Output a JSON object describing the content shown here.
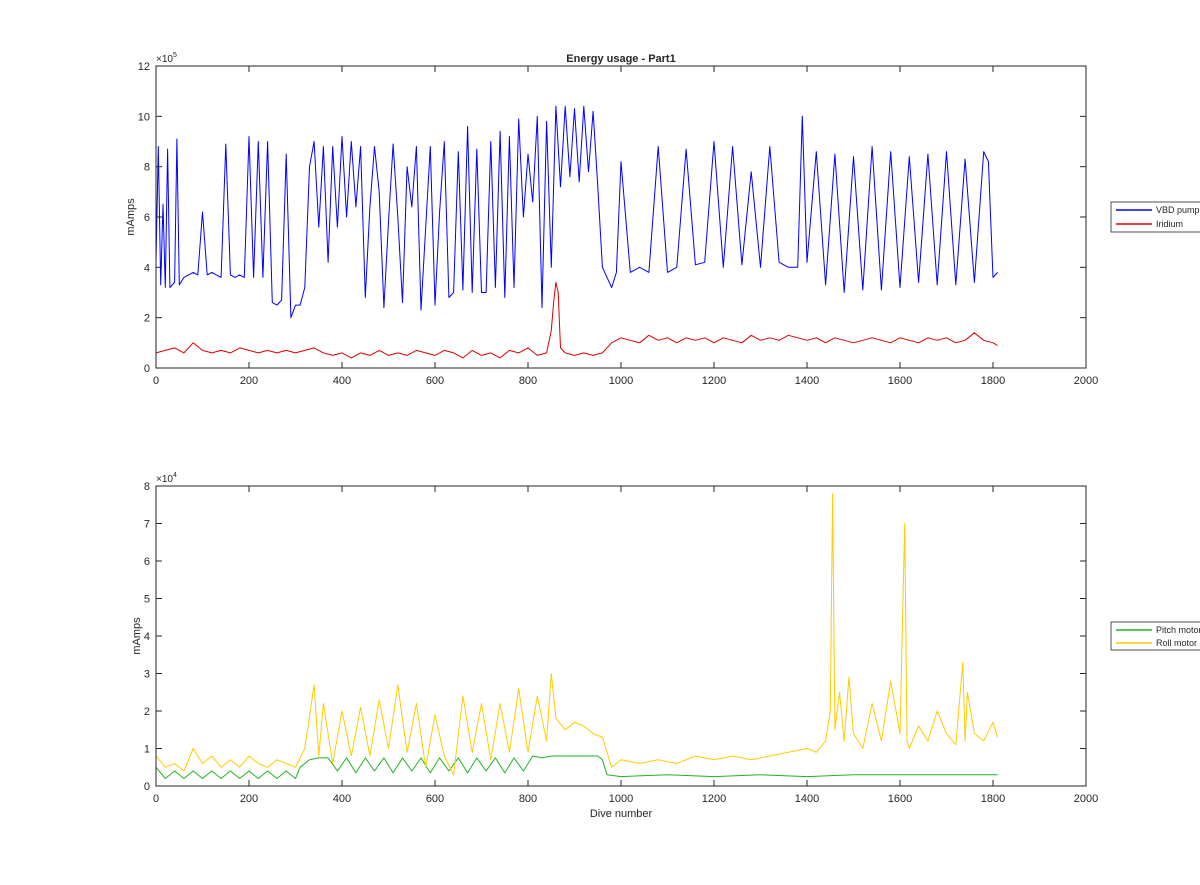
{
  "chart_data": [
    {
      "type": "line",
      "title": "Energy usage - Part1",
      "xlabel": "",
      "ylabel": "mAmps",
      "xlim": [
        0,
        2000
      ],
      "ylim": [
        0,
        1200000
      ],
      "x_ticks": [
        "0",
        "200",
        "400",
        "600",
        "800",
        "1000",
        "1200",
        "1400",
        "1600",
        "1800",
        "2000"
      ],
      "y_ticks": [
        "0",
        "2",
        "4",
        "6",
        "8",
        "10",
        "12"
      ],
      "y_multiplier": {
        "base": "×10",
        "exp": "5"
      },
      "grid": false,
      "legend_position": "outside-right",
      "series": [
        {
          "name": "VBD pump",
          "color": "#0000ff",
          "x": [
            0,
            5,
            10,
            15,
            20,
            25,
            30,
            35,
            40,
            45,
            50,
            60,
            70,
            80,
            90,
            100,
            110,
            120,
            130,
            140,
            150,
            160,
            170,
            180,
            190,
            200,
            210,
            220,
            230,
            240,
            250,
            260,
            270,
            280,
            290,
            300,
            310,
            320,
            330,
            340,
            350,
            360,
            370,
            380,
            390,
            400,
            410,
            420,
            430,
            440,
            450,
            460,
            470,
            480,
            490,
            500,
            510,
            520,
            530,
            540,
            550,
            560,
            570,
            580,
            590,
            600,
            610,
            620,
            630,
            640,
            650,
            660,
            670,
            680,
            690,
            700,
            710,
            720,
            730,
            740,
            750,
            760,
            770,
            780,
            790,
            800,
            810,
            820,
            830,
            840,
            850,
            860,
            870,
            880,
            890,
            900,
            910,
            920,
            930,
            940,
            950,
            960,
            970,
            980,
            990,
            1000,
            1020,
            1040,
            1060,
            1080,
            1100,
            1120,
            1140,
            1160,
            1180,
            1200,
            1220,
            1240,
            1260,
            1280,
            1300,
            1320,
            1340,
            1360,
            1380,
            1390,
            1400,
            1420,
            1440,
            1460,
            1480,
            1500,
            1520,
            1540,
            1560,
            1580,
            1600,
            1620,
            1640,
            1660,
            1680,
            1700,
            1720,
            1740,
            1760,
            1780,
            1790,
            1800,
            1810
          ],
          "y": [
            420000,
            880000,
            330000,
            650000,
            320000,
            870000,
            320000,
            330000,
            340000,
            910000,
            330000,
            360000,
            370000,
            380000,
            370000,
            620000,
            370000,
            380000,
            370000,
            360000,
            890000,
            370000,
            360000,
            370000,
            360000,
            920000,
            360000,
            900000,
            360000,
            900000,
            260000,
            250000,
            270000,
            850000,
            200000,
            250000,
            250000,
            320000,
            800000,
            900000,
            560000,
            880000,
            420000,
            880000,
            560000,
            920000,
            600000,
            900000,
            640000,
            880000,
            280000,
            640000,
            880000,
            700000,
            240000,
            580000,
            890000,
            600000,
            260000,
            800000,
            640000,
            880000,
            230000,
            560000,
            880000,
            250000,
            620000,
            900000,
            280000,
            300000,
            860000,
            310000,
            960000,
            300000,
            870000,
            300000,
            300000,
            900000,
            320000,
            940000,
            280000,
            920000,
            320000,
            990000,
            600000,
            850000,
            660000,
            1000000,
            240000,
            980000,
            400000,
            1040000,
            720000,
            1040000,
            760000,
            1030000,
            740000,
            1040000,
            780000,
            1020000,
            720000,
            400000,
            360000,
            320000,
            380000,
            820000,
            380000,
            400000,
            380000,
            880000,
            380000,
            400000,
            870000,
            410000,
            420000,
            900000,
            400000,
            880000,
            410000,
            780000,
            400000,
            880000,
            420000,
            400000,
            400000,
            1000000,
            420000,
            860000,
            330000,
            850000,
            300000,
            840000,
            310000,
            880000,
            310000,
            860000,
            320000,
            840000,
            340000,
            850000,
            330000,
            860000,
            330000,
            830000,
            340000,
            860000,
            820000,
            360000,
            380000
          ]
        },
        {
          "name": "Iridium",
          "color": "#dd0000",
          "x": [
            0,
            20,
            40,
            60,
            80,
            100,
            120,
            140,
            160,
            180,
            200,
            220,
            240,
            260,
            280,
            300,
            320,
            340,
            360,
            380,
            400,
            420,
            440,
            460,
            480,
            500,
            520,
            540,
            560,
            580,
            600,
            620,
            640,
            660,
            680,
            700,
            720,
            740,
            760,
            780,
            800,
            820,
            840,
            850,
            855,
            860,
            865,
            870,
            880,
            900,
            920,
            940,
            960,
            980,
            1000,
            1020,
            1040,
            1060,
            1080,
            1100,
            1120,
            1140,
            1160,
            1180,
            1200,
            1220,
            1240,
            1260,
            1280,
            1300,
            1320,
            1340,
            1360,
            1380,
            1400,
            1420,
            1440,
            1460,
            1480,
            1500,
            1520,
            1540,
            1560,
            1580,
            1600,
            1620,
            1640,
            1660,
            1680,
            1700,
            1720,
            1740,
            1760,
            1780,
            1800,
            1810
          ],
          "y": [
            60000,
            70000,
            80000,
            60000,
            100000,
            70000,
            60000,
            70000,
            60000,
            80000,
            70000,
            60000,
            70000,
            60000,
            70000,
            60000,
            70000,
            80000,
            60000,
            50000,
            60000,
            40000,
            60000,
            50000,
            70000,
            50000,
            60000,
            50000,
            70000,
            60000,
            50000,
            70000,
            60000,
            40000,
            70000,
            50000,
            60000,
            40000,
            70000,
            60000,
            80000,
            50000,
            60000,
            150000,
            260000,
            340000,
            300000,
            80000,
            60000,
            50000,
            60000,
            50000,
            60000,
            100000,
            120000,
            110000,
            100000,
            130000,
            110000,
            120000,
            100000,
            120000,
            110000,
            120000,
            100000,
            120000,
            110000,
            100000,
            130000,
            110000,
            120000,
            110000,
            130000,
            120000,
            110000,
            120000,
            100000,
            120000,
            110000,
            100000,
            110000,
            120000,
            110000,
            100000,
            120000,
            110000,
            100000,
            120000,
            110000,
            120000,
            100000,
            110000,
            140000,
            110000,
            100000,
            90000
          ]
        }
      ]
    },
    {
      "type": "line",
      "title": "",
      "xlabel": "Dive number",
      "ylabel": "mAmps",
      "xlim": [
        0,
        2000
      ],
      "ylim": [
        0,
        80000
      ],
      "x_ticks": [
        "0",
        "200",
        "400",
        "600",
        "800",
        "1000",
        "1200",
        "1400",
        "1600",
        "1800",
        "2000"
      ],
      "y_ticks": [
        "0",
        "1",
        "2",
        "3",
        "4",
        "5",
        "6",
        "7",
        "8"
      ],
      "y_multiplier": {
        "base": "×10",
        "exp": "4"
      },
      "grid": false,
      "legend_position": "outside-right",
      "series": [
        {
          "name": "Pitch motor",
          "color": "#22b322",
          "x": [
            0,
            20,
            40,
            60,
            80,
            100,
            120,
            140,
            160,
            180,
            200,
            220,
            240,
            260,
            280,
            300,
            310,
            330,
            350,
            370,
            390,
            410,
            430,
            450,
            470,
            490,
            510,
            530,
            550,
            570,
            590,
            610,
            630,
            650,
            670,
            690,
            710,
            730,
            750,
            770,
            790,
            810,
            830,
            850,
            870,
            890,
            910,
            930,
            950,
            960,
            970,
            1000,
            1100,
            1200,
            1300,
            1400,
            1500,
            1600,
            1700,
            1800,
            1810
          ],
          "y": [
            5000,
            2000,
            4000,
            2000,
            4000,
            2000,
            4000,
            2000,
            4000,
            2000,
            4000,
            2000,
            4000,
            2000,
            4000,
            2000,
            5000,
            7000,
            7500,
            7500,
            4000,
            7500,
            3500,
            7500,
            4000,
            7500,
            3500,
            7500,
            4000,
            7500,
            3500,
            7500,
            4000,
            7500,
            3500,
            7500,
            4000,
            7500,
            3500,
            7500,
            4000,
            8000,
            7500,
            8000,
            8000,
            8000,
            8000,
            8000,
            8000,
            7000,
            3000,
            2500,
            3000,
            2500,
            3000,
            2500,
            3000,
            3000,
            3000,
            3000,
            3000
          ]
        },
        {
          "name": "Roll motor",
          "color": "#ffcc00",
          "x": [
            0,
            20,
            40,
            60,
            80,
            100,
            120,
            140,
            160,
            180,
            200,
            220,
            240,
            260,
            280,
            300,
            320,
            340,
            350,
            360,
            380,
            400,
            420,
            440,
            460,
            480,
            500,
            520,
            540,
            560,
            580,
            600,
            620,
            640,
            660,
            680,
            700,
            720,
            740,
            760,
            780,
            800,
            820,
            840,
            850,
            860,
            880,
            900,
            920,
            940,
            960,
            980,
            1000,
            1040,
            1080,
            1120,
            1160,
            1200,
            1240,
            1280,
            1320,
            1360,
            1400,
            1420,
            1440,
            1450,
            1455,
            1460,
            1470,
            1480,
            1490,
            1500,
            1520,
            1540,
            1560,
            1580,
            1600,
            1610,
            1615,
            1620,
            1640,
            1660,
            1680,
            1700,
            1720,
            1735,
            1740,
            1745,
            1760,
            1780,
            1800,
            1810
          ],
          "y": [
            8000,
            5000,
            6000,
            4000,
            10000,
            6000,
            8000,
            5000,
            7000,
            5000,
            8000,
            6000,
            5000,
            7000,
            6000,
            5000,
            10000,
            27000,
            8000,
            22000,
            6000,
            20000,
            8000,
            21000,
            8000,
            23000,
            10000,
            27000,
            9000,
            22000,
            5000,
            19000,
            8000,
            3000,
            24000,
            9000,
            22000,
            7000,
            22000,
            9000,
            26000,
            9000,
            24000,
            12000,
            30000,
            18000,
            15000,
            17000,
            16000,
            14000,
            13000,
            5000,
            7000,
            6000,
            7000,
            6000,
            8000,
            7000,
            8000,
            7000,
            8000,
            9000,
            10000,
            9000,
            12000,
            20000,
            78000,
            15000,
            25000,
            12000,
            29000,
            14000,
            10000,
            22000,
            12000,
            28000,
            14000,
            70000,
            12000,
            10000,
            16000,
            12000,
            20000,
            14000,
            11000,
            33000,
            12000,
            25000,
            14000,
            12000,
            17000,
            13000
          ]
        }
      ]
    }
  ]
}
